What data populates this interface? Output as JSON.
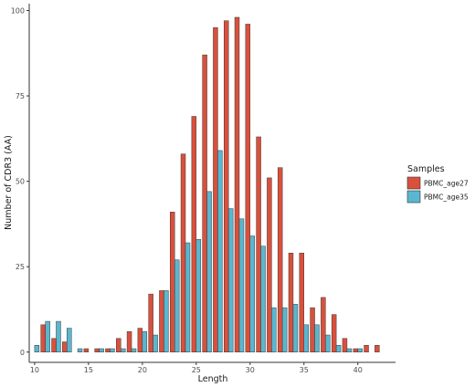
{
  "chart_data": {
    "type": "bar",
    "title": "",
    "xlabel": "Length",
    "ylabel": "Number of CDR3 (AA)",
    "xlim": [
      9.5,
      43.5
    ],
    "ylim": [
      -3,
      102
    ],
    "xticks": [
      10,
      15,
      20,
      25,
      30,
      35,
      40
    ],
    "yticks": [
      0,
      25,
      50,
      75,
      100
    ],
    "grid": false,
    "legend": {
      "title": "Samples",
      "position": "right"
    },
    "x": [
      10,
      11,
      12,
      13,
      14,
      15,
      16,
      17,
      18,
      19,
      20,
      21,
      22,
      23,
      24,
      25,
      26,
      27,
      28,
      29,
      30,
      31,
      32,
      33,
      34,
      35,
      36,
      37,
      38,
      39,
      40,
      41,
      42,
      43
    ],
    "series": [
      {
        "name": "PBMC_age27",
        "color": "#D9503C",
        "values": [
          0,
          8,
          4,
          3,
          0,
          1,
          1,
          1,
          4,
          6,
          7,
          17,
          18,
          41,
          58,
          69,
          87,
          95,
          97,
          98,
          96,
          63,
          51,
          54,
          29,
          29,
          13,
          16,
          11,
          4,
          1,
          2,
          2,
          0
        ]
      },
      {
        "name": "PBMC_age35",
        "color": "#5BB6CF",
        "values": [
          2,
          9,
          9,
          7,
          1,
          0,
          1,
          1,
          1,
          1,
          6,
          5,
          18,
          27,
          32,
          33,
          47,
          59,
          42,
          39,
          34,
          31,
          13,
          13,
          14,
          8,
          8,
          5,
          2,
          1,
          1,
          0,
          0,
          0
        ]
      }
    ]
  }
}
